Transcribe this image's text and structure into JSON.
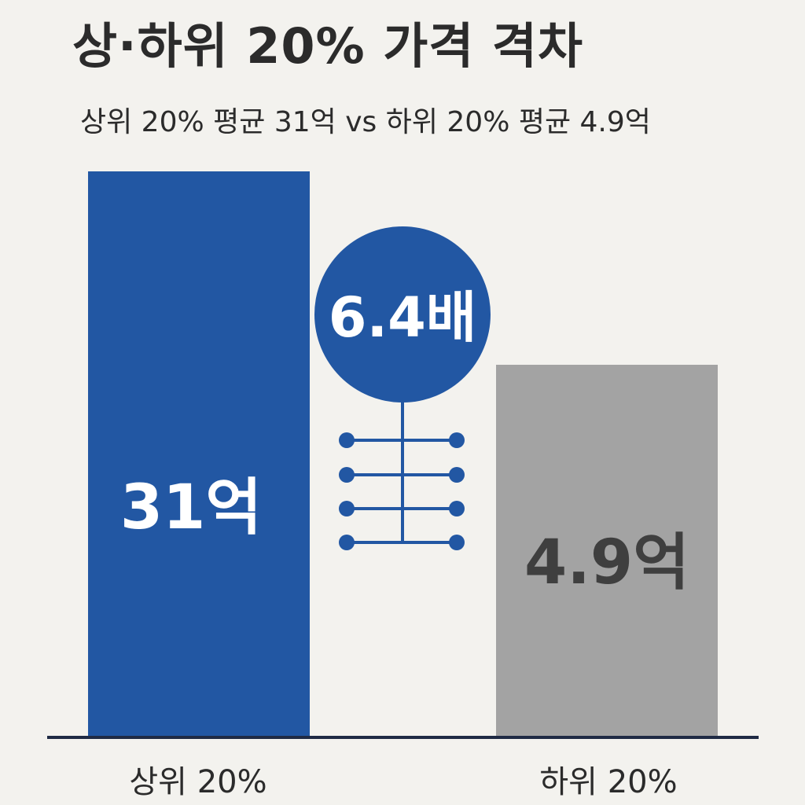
{
  "header": {
    "title": "상·하위 20% 가격 격차",
    "subtitle": "상위 20% 평균 31억 vs 하위 20% 평균 4.9억"
  },
  "chart_data": {
    "type": "bar",
    "categories": [
      "상위 20%",
      "하위 20%"
    ],
    "values": [
      31,
      4.9
    ],
    "value_labels": [
      "31억",
      "4.9억"
    ],
    "colors": [
      "#2257a3",
      "#a3a3a3"
    ],
    "label_colors": [
      "#ffffff",
      "#3f3f3f"
    ],
    "ratio_label": "6.4배",
    "ratio_color": "#2257a3",
    "axis_color": "#1f2a44",
    "grid": false
  }
}
